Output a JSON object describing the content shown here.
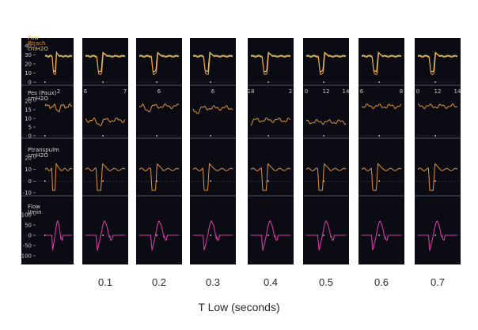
{
  "chart_data": {
    "type": "line",
    "xlabel": "T Low (seconds)",
    "categories": [
      "0.1",
      "0.2",
      "0.3",
      "0.4",
      "0.5",
      "0.6",
      "0.7"
    ],
    "channels": [
      {
        "key": "paw",
        "labels": [
          "Paw",
          "Ptrach",
          "cmH2O"
        ],
        "label_colors": [
          "#d8c86a",
          "#e08a2a",
          "#d8c86a"
        ],
        "yticks": [
          "40",
          "30",
          "20",
          "10",
          "0"
        ],
        "yrange": [
          0,
          40
        ],
        "colors": [
          "#e6dc82",
          "#e89a3a"
        ]
      },
      {
        "key": "pes",
        "labels": [
          "Pes (Paux)",
          "cmH2O"
        ],
        "label_colors": [
          "#d8d8d8",
          "#d8d8d8"
        ],
        "yticks": [
          "20",
          "15",
          "10",
          "5",
          "0"
        ],
        "yrange": [
          0,
          20
        ],
        "colors": [
          "#e39238"
        ]
      },
      {
        "key": "ptp",
        "labels": [
          "Ptranspulm",
          "cmH2O"
        ],
        "label_colors": [
          "#d8d8d8",
          "#d8d8d8"
        ],
        "yticks": [
          "20",
          "10",
          "0",
          "-10"
        ],
        "yrange": [
          -10,
          20
        ],
        "colors": [
          "#e39238"
        ]
      },
      {
        "key": "flow",
        "labels": [
          "Flow",
          "l/min"
        ],
        "label_colors": [
          "#d8d8d8",
          "#d8d8d8"
        ],
        "yticks": [
          "100",
          "50",
          "0",
          "-50",
          "-100"
        ],
        "yrange": [
          -100,
          100
        ],
        "colors": [
          "#d23aa0"
        ]
      }
    ],
    "time_ticks": [
      [
        "2"
      ],
      [
        "6",
        "7"
      ],
      [
        "6"
      ],
      [
        "6"
      ],
      [
        "18",
        "2"
      ],
      [
        "0",
        "12",
        "14"
      ],
      [
        "6",
        "8"
      ],
      [
        "0",
        "12",
        "14"
      ]
    ],
    "series": [
      {
        "name": "Paw",
        "baseline": 29,
        "trough": 13,
        "overshoot": 33
      },
      {
        "name": "Ptrach",
        "baseline": 28,
        "trough": 10,
        "overshoot": 32
      },
      {
        "name": "Pes (Paux)",
        "baseline": [
          17,
          9,
          17,
          16,
          9,
          8,
          17,
          17
        ]
      },
      {
        "name": "Ptranspulm",
        "baseline": 10,
        "trough": -8,
        "overshoot": 15
      },
      {
        "name": "Flow",
        "baseline": 0,
        "trough": -75,
        "peak": 70
      }
    ]
  }
}
